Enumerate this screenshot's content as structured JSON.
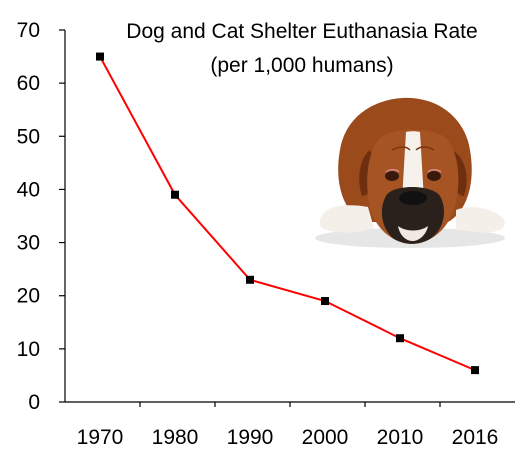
{
  "chart_data": {
    "type": "line",
    "title": "Dog and Cat Shelter Euthanasia Rate",
    "subtitle": "(per 1,000 humans)",
    "xlabel": "",
    "ylabel": "",
    "categories": [
      "1970",
      "1980",
      "1990",
      "2000",
      "2010",
      "2016"
    ],
    "y_ticks": [
      "0",
      "10",
      "20",
      "30",
      "40",
      "50",
      "60",
      "70"
    ],
    "ylim": [
      0,
      70
    ],
    "grid": false,
    "legend": "none",
    "series": [
      {
        "values": [
          65,
          39,
          23,
          19,
          12,
          6
        ],
        "color": "#ff0000",
        "marker_color": "#000000"
      }
    ]
  },
  "illustration": {
    "subject": "boxer-dog-icon"
  }
}
